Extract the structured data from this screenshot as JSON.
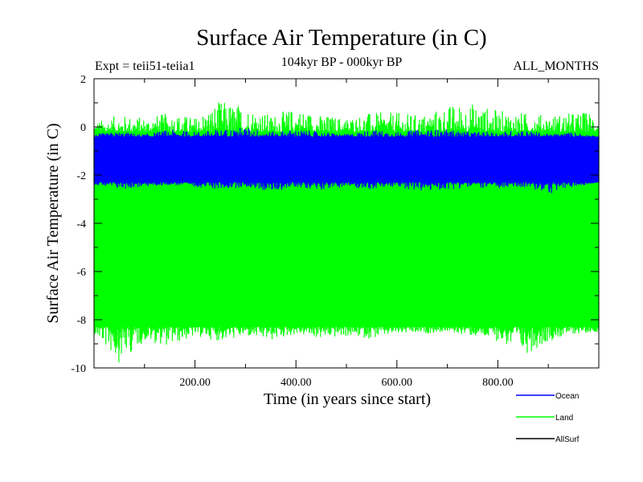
{
  "chart_data": {
    "type": "line",
    "title": "Surface Air Temperature (in C)",
    "subtitle": "104kyr BP - 000kyr BP",
    "left_label": "Expt = teii51-teiia1",
    "right_label": "ALL_MONTHS",
    "xlabel": "Time (in years since start)",
    "ylabel": "Surface Air Temperature (in C)",
    "xlim": [
      0,
      1000
    ],
    "ylim": [
      -10,
      2
    ],
    "x_ticks": [
      200,
      400,
      600,
      800
    ],
    "x_tick_labels": [
      "200.00",
      "400.00",
      "600.00",
      "800.00"
    ],
    "y_ticks": [
      -10,
      -8,
      -6,
      -4,
      -2,
      0,
      2
    ],
    "y_tick_labels": [
      "-10",
      "-8",
      "-6",
      "-4",
      "-2",
      "0",
      "2"
    ],
    "legend_position": "bottom-right, outside plot",
    "series": [
      {
        "name": "Land",
        "color": "#00ff00",
        "x_range": [
          0,
          1000
        ],
        "typical_min": -8.3,
        "typical_max": -0.2,
        "extreme_min": -9.8,
        "extreme_max": 1.1,
        "x": [
          0,
          50,
          100,
          150,
          200,
          250,
          300,
          350,
          400,
          450,
          500,
          550,
          600,
          650,
          700,
          750,
          800,
          850,
          900,
          950,
          1000
        ],
        "min": [
          -8.6,
          -9.8,
          -8.9,
          -9.1,
          -8.7,
          -8.9,
          -8.7,
          -8.9,
          -8.6,
          -8.8,
          -8.7,
          -8.8,
          -8.6,
          -8.6,
          -8.5,
          -8.7,
          -8.9,
          -9.5,
          -8.9,
          -8.6,
          -8.5
        ],
        "max": [
          0.2,
          0.5,
          0.4,
          0.6,
          0.4,
          1.1,
          0.9,
          0.5,
          0.8,
          0.5,
          0.4,
          0.6,
          0.6,
          0.5,
          0.9,
          1.0,
          0.7,
          0.6,
          0.5,
          0.6,
          0.7
        ]
      },
      {
        "name": "Ocean",
        "color": "#0000ff",
        "x_range": [
          0,
          1000
        ],
        "typical_min": -2.3,
        "typical_max": -0.4,
        "extreme_min": -2.8,
        "extreme_max": 0.0,
        "x": [
          0,
          50,
          100,
          150,
          200,
          250,
          300,
          350,
          400,
          450,
          500,
          550,
          600,
          650,
          700,
          750,
          800,
          850,
          900,
          950,
          1000
        ],
        "min": [
          -2.4,
          -2.6,
          -2.5,
          -2.4,
          -2.5,
          -2.6,
          -2.5,
          -2.7,
          -2.5,
          -2.6,
          -2.5,
          -2.6,
          -2.5,
          -2.7,
          -2.6,
          -2.5,
          -2.6,
          -2.5,
          -2.8,
          -2.5,
          -2.3
        ],
        "max": [
          -0.3,
          -0.2,
          -0.3,
          -0.1,
          -0.2,
          -0.1,
          0.0,
          -0.2,
          -0.1,
          -0.2,
          -0.3,
          -0.1,
          -0.2,
          -0.1,
          -0.1,
          -0.2,
          -0.2,
          -0.1,
          -0.3,
          -0.2,
          -0.4
        ]
      },
      {
        "name": "AllSurf",
        "color": "#000000",
        "x": [],
        "y": []
      }
    ]
  }
}
